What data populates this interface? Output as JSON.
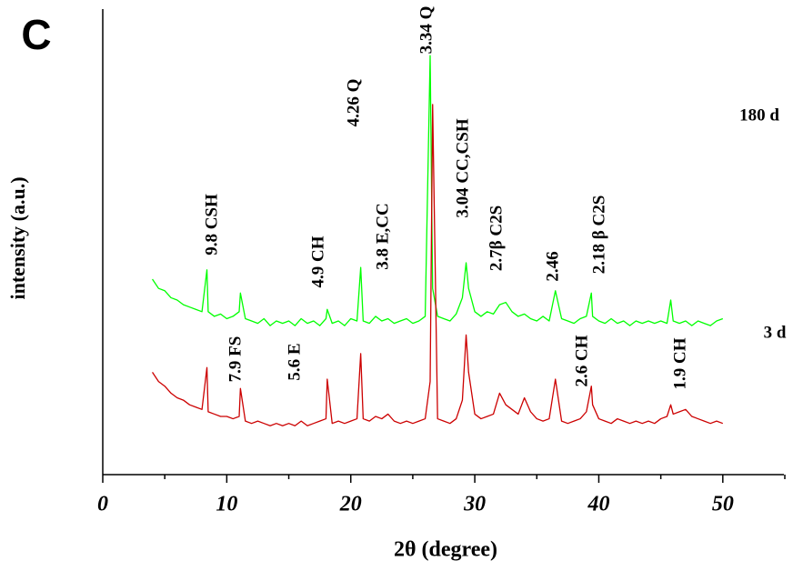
{
  "chart_data": {
    "type": "line",
    "panel_label": "C",
    "x_label": "2θ (degree)",
    "y_label": "intensity (a.u.)",
    "xlim": [
      0,
      55
    ],
    "ylim": [
      0,
      100
    ],
    "xticks": [
      0,
      10,
      20,
      30,
      40,
      50
    ],
    "x_minor_ticks": [
      5,
      15,
      25,
      35,
      45,
      55
    ],
    "x": [
      4,
      4.5,
      5,
      5.5,
      6,
      6.5,
      7,
      7.5,
      8,
      8.4,
      8.5,
      9,
      9.5,
      10,
      10.5,
      11,
      11.1,
      11.5,
      12,
      12.5,
      13,
      13.5,
      14,
      14.5,
      15,
      15.5,
      16,
      16.5,
      17,
      17.5,
      18,
      18.1,
      18.5,
      19,
      19.5,
      20,
      20.5,
      20.8,
      21,
      21.5,
      22,
      22.5,
      23,
      23.5,
      24,
      24.5,
      25,
      25.5,
      26,
      26.4,
      26.6,
      27,
      27.5,
      28,
      28.5,
      29,
      29.3,
      29.5,
      30,
      30.5,
      31,
      31.5,
      32,
      32.5,
      33,
      33.5,
      34,
      34.5,
      35,
      35.5,
      36,
      36.5,
      37,
      37.5,
      38,
      38.5,
      39,
      39.4,
      39.5,
      40,
      40.5,
      41,
      41.5,
      42,
      42.5,
      43,
      43.5,
      44,
      44.5,
      45,
      45.5,
      45.8,
      46,
      46.5,
      47,
      47.5,
      48,
      48.5,
      49,
      49.5,
      50
    ],
    "series": [
      {
        "name": "180 d",
        "color": "#00ff00",
        "values": [
          42,
          40,
          39.5,
          38,
          37.5,
          36.5,
          36,
          35.5,
          35,
          44,
          35,
          34,
          34.5,
          33.5,
          34,
          35,
          39,
          33.5,
          33,
          32.5,
          33.5,
          32,
          33,
          32.5,
          33,
          32,
          33.5,
          32.5,
          33,
          32,
          33.5,
          35.5,
          32.5,
          33,
          32,
          33.5,
          33,
          44.5,
          33,
          32.5,
          34,
          33,
          33.5,
          32.5,
          33,
          33.5,
          32.5,
          33,
          34,
          90,
          40,
          34,
          33.5,
          33,
          34.5,
          38,
          45.5,
          40,
          35,
          34,
          35,
          34.5,
          36.5,
          37,
          35,
          34,
          34.5,
          33.5,
          33,
          34,
          33,
          39.5,
          33.5,
          33,
          32.5,
          33.5,
          34,
          39,
          34,
          33,
          32.5,
          33.5,
          32.5,
          33,
          32,
          33,
          32.5,
          33,
          32.5,
          33,
          32.5,
          37.5,
          33,
          32.5,
          33,
          32,
          33,
          32.5,
          32,
          33,
          33.5
        ]
      },
      {
        "name": "3 d",
        "color": "#cc0000",
        "values": [
          22,
          20,
          19,
          17.5,
          16.5,
          16,
          15,
          14.5,
          14,
          23,
          13.5,
          13,
          12.5,
          12.5,
          12,
          12.5,
          18.5,
          11.5,
          11,
          11.5,
          11,
          10.5,
          11,
          10.5,
          11,
          10.5,
          11.5,
          10.5,
          11,
          11.5,
          12,
          20.5,
          11,
          11.5,
          11,
          11.5,
          12,
          26,
          12,
          11.5,
          12.5,
          12,
          13,
          11.5,
          11,
          11.5,
          11,
          11.5,
          12,
          20,
          79.5,
          12,
          11.5,
          11,
          12,
          16,
          30,
          22,
          13,
          12,
          12.5,
          13,
          17.5,
          15,
          14,
          13,
          16.5,
          13.5,
          12,
          11.5,
          12,
          20.5,
          11.5,
          11,
          11.5,
          12,
          13.5,
          19,
          15,
          12,
          11.5,
          11,
          12,
          11.5,
          11,
          11.5,
          11,
          11.5,
          11,
          12,
          12.5,
          15,
          13,
          13.5,
          14,
          12.5,
          12,
          11.5,
          11,
          11.5,
          11
        ]
      }
    ],
    "annotations": [
      {
        "text": "3.34 Q"
      },
      {
        "text": "4.26 Q"
      },
      {
        "text": "9.8 CSH"
      },
      {
        "text": "4.9 CH"
      },
      {
        "text": "3.8 E,CC"
      },
      {
        "text": "3.04 CC,CSH"
      },
      {
        "text": "2.7β C2S"
      },
      {
        "text": "2.46"
      },
      {
        "text": "2.18 β C2S"
      },
      {
        "text": "7.9 FS"
      },
      {
        "text": "5.6 E"
      },
      {
        "text": "2.6 CH"
      },
      {
        "text": "1.9 CH"
      }
    ]
  }
}
